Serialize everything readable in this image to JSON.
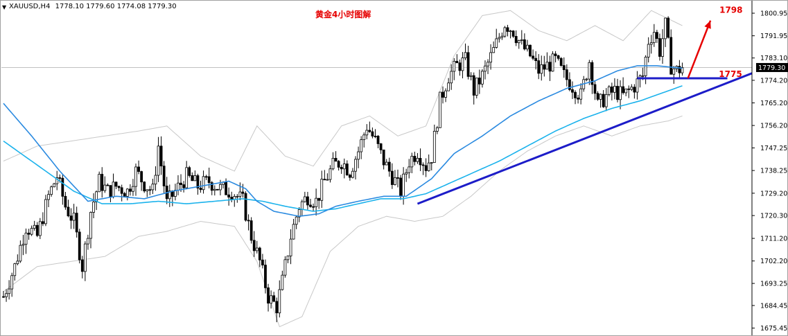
{
  "header": {
    "symbol_timeframe": "XAUUSD,H4",
    "ohlc": "1778.10 1779.60 1774.08 1779.30",
    "chart_title": "黄金4小时图解"
  },
  "current_price": {
    "label": "1779.30",
    "value": 1779.3,
    "bg_color": "#000000"
  },
  "annotations": {
    "target_label": "1798",
    "target_value": 1798,
    "support_label": "1775",
    "support_value": 1775,
    "color": "#e60000"
  },
  "colors": {
    "candle": "#000000",
    "ma_fast": "#2a8ae0",
    "ma_slow": "#1ab2ec",
    "bollinger": "#c8c8c8",
    "trendline": "#1c1cc8",
    "arrow": "#e60000"
  },
  "chart_data": {
    "type": "candlestick",
    "instrument": "XAUUSD",
    "timeframe": "H4",
    "ylim": [
      1675.45,
      1804.0
    ],
    "y_ticks": [
      1800.95,
      1791.95,
      1783.1,
      1774.2,
      1765.2,
      1756.2,
      1747.25,
      1738.25,
      1729.2,
      1720.3,
      1711.2,
      1702.2,
      1693.25,
      1684.45,
      1675.45
    ],
    "y_tick_labels": [
      "1800.95",
      "1791.95",
      "1783.10",
      "1774.20",
      "1765.20",
      "1756.20",
      "1747.25",
      "1738.25",
      "1729.20",
      "1720.30",
      "1711.20",
      "1702.20",
      "1693.25",
      "1684.45",
      "1675.45"
    ],
    "close_path": [
      [
        0,
        1688
      ],
      [
        4,
        1700
      ],
      [
        8,
        1716
      ],
      [
        12,
        1712
      ],
      [
        16,
        1728
      ],
      [
        19,
        1736
      ],
      [
        22,
        1724
      ],
      [
        25,
        1718
      ],
      [
        28,
        1700
      ],
      [
        31,
        1722
      ],
      [
        34,
        1734
      ],
      [
        37,
        1730
      ],
      [
        40,
        1732
      ],
      [
        44,
        1730
      ],
      [
        47,
        1738
      ],
      [
        50,
        1733
      ],
      [
        53,
        1730
      ],
      [
        55,
        1748
      ],
      [
        58,
        1725
      ],
      [
        61,
        1730
      ],
      [
        65,
        1736
      ],
      [
        69,
        1732
      ],
      [
        73,
        1734
      ],
      [
        77,
        1731
      ],
      [
        81,
        1730
      ],
      [
        85,
        1726
      ],
      [
        88,
        1712
      ],
      [
        91,
        1702
      ],
      [
        94,
        1688
      ],
      [
        97,
        1684
      ],
      [
        99,
        1694
      ],
      [
        102,
        1712
      ],
      [
        105,
        1724
      ],
      [
        108,
        1728
      ],
      [
        111,
        1726
      ],
      [
        114,
        1734
      ],
      [
        117,
        1740
      ],
      [
        120,
        1742
      ],
      [
        123,
        1738
      ],
      [
        126,
        1746
      ],
      [
        129,
        1756
      ],
      [
        132,
        1750
      ],
      [
        135,
        1742
      ],
      [
        138,
        1736
      ],
      [
        141,
        1730
      ],
      [
        144,
        1742
      ],
      [
        147,
        1746
      ],
      [
        150,
        1740
      ],
      [
        152,
        1744
      ],
      [
        155,
        1766
      ],
      [
        158,
        1776
      ],
      [
        161,
        1780
      ],
      [
        164,
        1782
      ],
      [
        167,
        1770
      ],
      [
        170,
        1776
      ],
      [
        174,
        1786
      ],
      [
        178,
        1797
      ],
      [
        181,
        1794
      ],
      [
        184,
        1788
      ],
      [
        187,
        1784
      ],
      [
        190,
        1778
      ],
      [
        193,
        1780
      ],
      [
        196,
        1782
      ],
      [
        199,
        1776
      ],
      [
        202,
        1772
      ],
      [
        205,
        1768
      ],
      [
        208,
        1782
      ],
      [
        211,
        1764
      ],
      [
        214,
        1768
      ],
      [
        217,
        1770
      ],
      [
        220,
        1768
      ],
      [
        224,
        1772
      ],
      [
        227,
        1776
      ],
      [
        229,
        1790
      ],
      [
        231,
        1794
      ],
      [
        233,
        1786
      ],
      [
        235,
        1796
      ],
      [
        237,
        1780
      ],
      [
        239,
        1778
      ],
      [
        241,
        1779.3
      ]
    ],
    "ma_fast": [
      [
        0,
        1765
      ],
      [
        10,
        1752
      ],
      [
        20,
        1738
      ],
      [
        30,
        1726
      ],
      [
        40,
        1728
      ],
      [
        50,
        1727
      ],
      [
        60,
        1730
      ],
      [
        70,
        1732
      ],
      [
        80,
        1734
      ],
      [
        86,
        1731
      ],
      [
        90,
        1726
      ],
      [
        96,
        1722
      ],
      [
        105,
        1720
      ],
      [
        112,
        1721
      ],
      [
        118,
        1724
      ],
      [
        126,
        1726
      ],
      [
        135,
        1728
      ],
      [
        143,
        1728
      ],
      [
        152,
        1735
      ],
      [
        160,
        1745
      ],
      [
        170,
        1752
      ],
      [
        180,
        1760
      ],
      [
        190,
        1766
      ],
      [
        200,
        1771
      ],
      [
        210,
        1774
      ],
      [
        218,
        1778
      ],
      [
        225,
        1780
      ],
      [
        232,
        1780
      ],
      [
        241,
        1779
      ]
    ],
    "ma_slow": [
      [
        0,
        1750
      ],
      [
        15,
        1738
      ],
      [
        25,
        1730
      ],
      [
        35,
        1725
      ],
      [
        45,
        1725
      ],
      [
        55,
        1726
      ],
      [
        65,
        1725
      ],
      [
        75,
        1726
      ],
      [
        85,
        1727
      ],
      [
        92,
        1726
      ],
      [
        100,
        1724
      ],
      [
        110,
        1722
      ],
      [
        118,
        1723
      ],
      [
        126,
        1725
      ],
      [
        134,
        1727
      ],
      [
        142,
        1727
      ],
      [
        150,
        1729
      ],
      [
        158,
        1733
      ],
      [
        166,
        1737
      ],
      [
        176,
        1742
      ],
      [
        186,
        1748
      ],
      [
        196,
        1754
      ],
      [
        206,
        1759
      ],
      [
        216,
        1763
      ],
      [
        226,
        1766
      ],
      [
        236,
        1770
      ],
      [
        241,
        1772
      ]
    ],
    "bollinger_upper": [
      [
        0,
        1742
      ],
      [
        12,
        1748
      ],
      [
        24,
        1750
      ],
      [
        36,
        1752
      ],
      [
        48,
        1754
      ],
      [
        58,
        1756
      ],
      [
        70,
        1744
      ],
      [
        82,
        1738
      ],
      [
        90,
        1756
      ],
      [
        100,
        1744
      ],
      [
        110,
        1740
      ],
      [
        120,
        1756
      ],
      [
        130,
        1760
      ],
      [
        140,
        1752
      ],
      [
        150,
        1756
      ],
      [
        160,
        1784
      ],
      [
        170,
        1800
      ],
      [
        180,
        1802
      ],
      [
        190,
        1794
      ],
      [
        200,
        1790
      ],
      [
        210,
        1796
      ],
      [
        220,
        1790
      ],
      [
        230,
        1802
      ],
      [
        241,
        1796
      ]
    ],
    "bollinger_lower": [
      [
        0,
        1690
      ],
      [
        12,
        1700
      ],
      [
        24,
        1702
      ],
      [
        36,
        1704
      ],
      [
        48,
        1712
      ],
      [
        58,
        1714
      ],
      [
        70,
        1718
      ],
      [
        82,
        1716
      ],
      [
        90,
        1702
      ],
      [
        98,
        1676
      ],
      [
        106,
        1680
      ],
      [
        116,
        1706
      ],
      [
        126,
        1716
      ],
      [
        136,
        1720
      ],
      [
        146,
        1718
      ],
      [
        156,
        1720
      ],
      [
        166,
        1728
      ],
      [
        176,
        1738
      ],
      [
        186,
        1746
      ],
      [
        196,
        1752
      ],
      [
        206,
        1756
      ],
      [
        216,
        1752
      ],
      [
        226,
        1756
      ],
      [
        236,
        1758
      ],
      [
        241,
        1760
      ]
    ],
    "trendlines": [
      {
        "name": "ascending-support",
        "from": [
          147,
          1725
        ],
        "to": [
          268,
          1778
        ]
      },
      {
        "name": "horizontal-support",
        "from": [
          225,
          1775
        ],
        "to": [
          257,
          1775
        ]
      }
    ],
    "arrow": {
      "from": [
        243,
        1775
      ],
      "to": [
        251,
        1798
      ]
    }
  }
}
